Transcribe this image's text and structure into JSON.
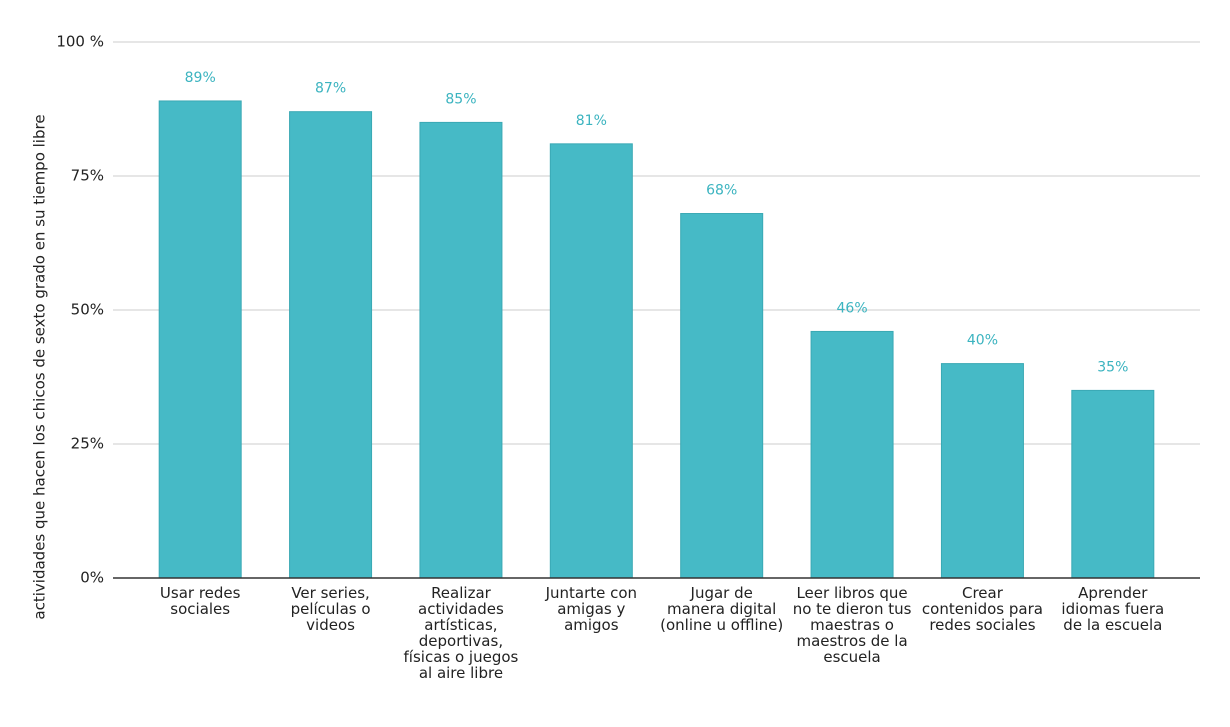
{
  "chart_data": {
    "type": "bar",
    "y_axis_label": "actividades que hacen los chicos de sexto grado en su tiempo libre",
    "categories": [
      "Usar redes sociales",
      "Ver series, películas o videos",
      "Realizar actividades artísticas, deportivas, físicas o juegos al aire libre",
      "Juntarte con amigas y amigos",
      "Jugar de manera digital (online u offline)",
      "Leer libros que no te dieron tus maestras o maestros de la escuela",
      "Crear contenidos para redes sociales",
      "Aprender idiomas fuera de la escuela"
    ],
    "values": [
      89,
      87,
      85,
      81,
      68,
      46,
      40,
      35
    ],
    "value_labels": [
      "89%",
      "87%",
      "85%",
      "81%",
      "68%",
      "46%",
      "40%",
      "35%"
    ],
    "color": "#46bac6",
    "ylim": [
      0,
      100
    ],
    "yticks": [
      {
        "value": 0,
        "label": "0%"
      },
      {
        "value": 25,
        "label": "25%"
      },
      {
        "value": 50,
        "label": "50%"
      },
      {
        "value": 75,
        "label": "75%"
      },
      {
        "value": 100,
        "label": "100 %"
      }
    ],
    "grid": true
  }
}
